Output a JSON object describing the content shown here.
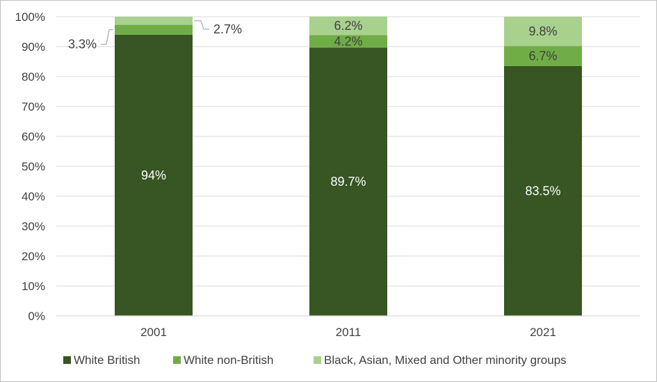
{
  "chart_data": {
    "type": "bar",
    "stacked": true,
    "title": "",
    "xlabel": "",
    "ylabel": "",
    "categories": [
      "2001",
      "2011",
      "2021"
    ],
    "ylim": [
      0,
      100
    ],
    "yticks": [
      "0%",
      "10%",
      "20%",
      "30%",
      "40%",
      "50%",
      "60%",
      "70%",
      "80%",
      "90%",
      "100%"
    ],
    "grid": true,
    "legend_position": "bottom",
    "series": [
      {
        "name": "White British",
        "values": [
          94,
          89.7,
          83.5
        ],
        "labels": [
          "94%",
          "89.7%",
          "83.5%"
        ],
        "color": "#375623"
      },
      {
        "name": "White non-British",
        "values": [
          3.3,
          4.2,
          6.7
        ],
        "labels": [
          "3.3%",
          "4.2%",
          "6.7%"
        ],
        "color": "#70ad47"
      },
      {
        "name": "Black, Asian, Mixed and Other minority groups",
        "values": [
          2.7,
          6.2,
          9.8
        ],
        "labels": [
          "2.7%",
          "6.2%",
          "9.8%"
        ],
        "color": "#a9d18e"
      }
    ]
  }
}
